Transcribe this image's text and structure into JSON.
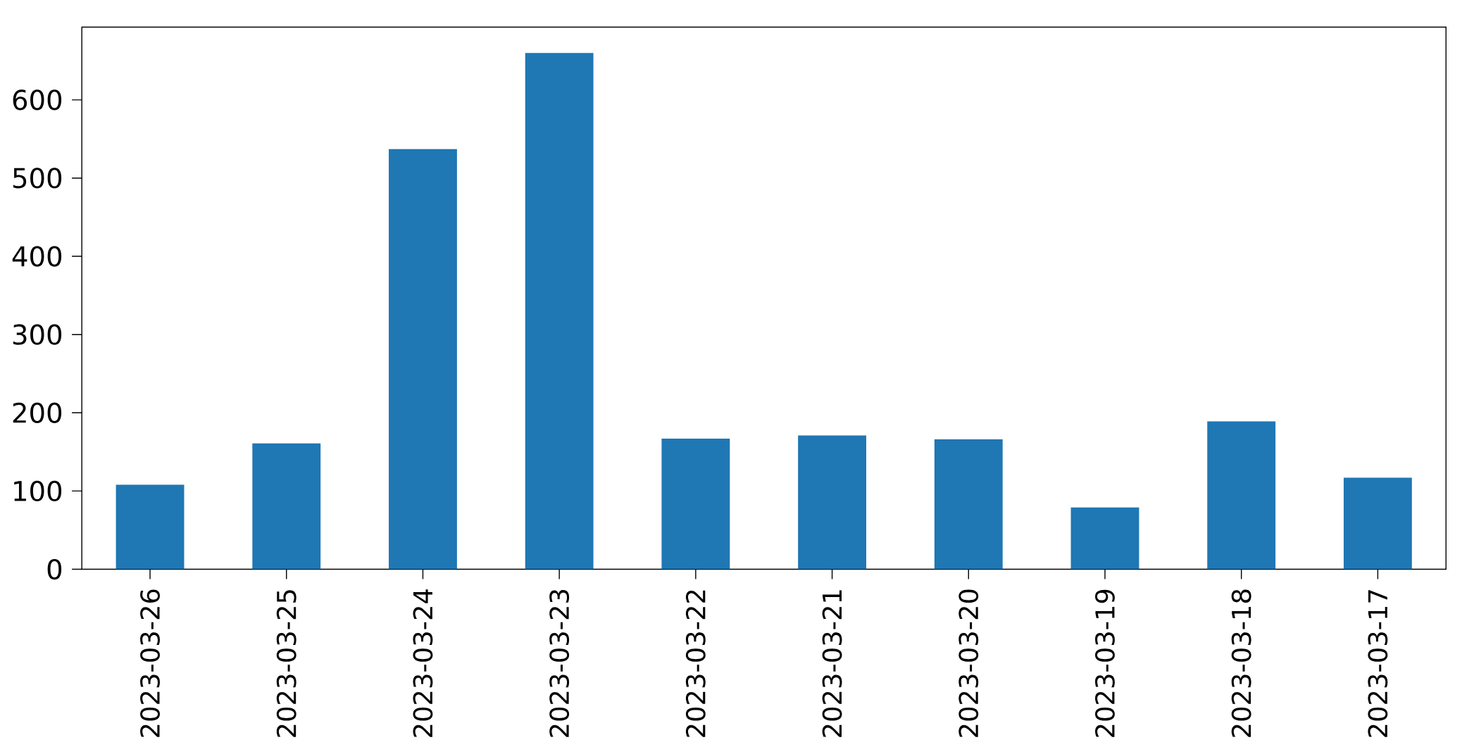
{
  "chart_data": {
    "type": "bar",
    "categories": [
      "2023-03-26",
      "2023-03-25",
      "2023-03-24",
      "2023-03-23",
      "2023-03-22",
      "2023-03-21",
      "2023-03-20",
      "2023-03-19",
      "2023-03-18",
      "2023-03-17"
    ],
    "values": [
      108,
      161,
      537,
      660,
      167,
      171,
      166,
      79,
      189,
      117
    ],
    "color": "#1f77b4",
    "ylim": [
      0,
      693
    ],
    "yticks": [
      0,
      100,
      200,
      300,
      400,
      500,
      600
    ],
    "grid": false
  }
}
